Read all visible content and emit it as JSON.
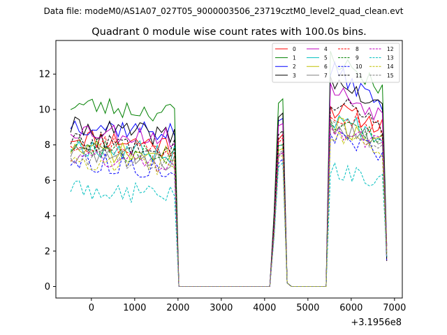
{
  "chart_data": {
    "type": "line",
    "suptitle": "Data file: modeM0/AS1A07_027T05_9000003506_23719cztM0_level2_quad_clean.evt",
    "title": "Quadrant 0 module wise count rates with 100.0s bins.",
    "xlabel": "",
    "ylabel": "",
    "x_offset_label": "+3.1956e8",
    "xlim": [
      -820,
      7180
    ],
    "ylim": [
      -0.65,
      13.9
    ],
    "xticks": [
      0,
      1000,
      2000,
      3000,
      4000,
      5000,
      6000,
      7000
    ],
    "yticks": [
      0,
      2,
      4,
      6,
      8,
      10,
      12
    ],
    "legend_position": "top-right",
    "legend_columns": 4,
    "series": [
      {
        "name": "0",
        "color": "#ff0000",
        "dash": "solid",
        "base": 8.5,
        "spike": 8.6,
        "high": 10.1,
        "seed": 11
      },
      {
        "name": "1",
        "color": "#008000",
        "dash": "solid",
        "base": 10.3,
        "spike": 10.6,
        "high": 13.0,
        "seed": 23
      },
      {
        "name": "2",
        "color": "#0000ff",
        "dash": "solid",
        "base": 9.2,
        "spike": 9.5,
        "high": 12.3,
        "seed": 37
      },
      {
        "name": "3",
        "color": "#000000",
        "dash": "solid",
        "base": 9.0,
        "spike": 9.8,
        "high": 11.8,
        "seed": 41
      },
      {
        "name": "4",
        "color": "#bf00bf",
        "dash": "solid",
        "base": 8.9,
        "spike": 9.2,
        "high": 11.2,
        "seed": 53
      },
      {
        "name": "5",
        "color": "#00bfbf",
        "dash": "solid",
        "base": 8.0,
        "spike": 8.0,
        "high": 9.6,
        "seed": 67
      },
      {
        "name": "6",
        "color": "#bfbf00",
        "dash": "solid",
        "base": 7.8,
        "spike": 7.8,
        "high": 9.2,
        "seed": 71
      },
      {
        "name": "7",
        "color": "#808080",
        "dash": "solid",
        "base": 7.6,
        "spike": 7.5,
        "high": 9.0,
        "seed": 83
      },
      {
        "name": "8",
        "color": "#ff0000",
        "dash": "dashed",
        "base": 8.2,
        "spike": 8.4,
        "high": 10.0,
        "seed": 97
      },
      {
        "name": "9",
        "color": "#008000",
        "dash": "dashed",
        "base": 7.9,
        "spike": 8.0,
        "high": 9.4,
        "seed": 101
      },
      {
        "name": "10",
        "color": "#0000ff",
        "dash": "dashed",
        "base": 7.1,
        "spike": 7.2,
        "high": 8.4,
        "seed": 113
      },
      {
        "name": "11",
        "color": "#000000",
        "dash": "dashed",
        "base": 8.3,
        "spike": 8.8,
        "high": 10.6,
        "seed": 127
      },
      {
        "name": "12",
        "color": "#bf00bf",
        "dash": "dashed",
        "base": 7.4,
        "spike": 7.6,
        "high": 9.1,
        "seed": 131
      },
      {
        "name": "13",
        "color": "#00bfbf",
        "dash": "dashed",
        "base": 5.6,
        "spike": 7.0,
        "high": 6.6,
        "seed": 149
      },
      {
        "name": "14",
        "color": "#bfbf00",
        "dash": "dashed",
        "base": 7.3,
        "spike": 7.4,
        "high": 8.8,
        "seed": 157
      },
      {
        "name": "15",
        "color": "#808080",
        "dash": "dashed",
        "base": 7.5,
        "spike": 7.7,
        "high": 9.2,
        "seed": 163
      }
    ],
    "segments": {
      "early": {
        "start": -480,
        "end": 1920
      },
      "drop_start": 2020,
      "flat_zero": [
        2020,
        4120
      ],
      "spike": {
        "rise": 4220,
        "peak": [
          4320,
          4420
        ],
        "fall": 4520
      },
      "flat_zero_2": [
        4620,
        5420
      ],
      "late": {
        "start": 5520,
        "end": 6720
      },
      "final_drop": 6820,
      "final_value": 1.8,
      "step": 100
    }
  }
}
